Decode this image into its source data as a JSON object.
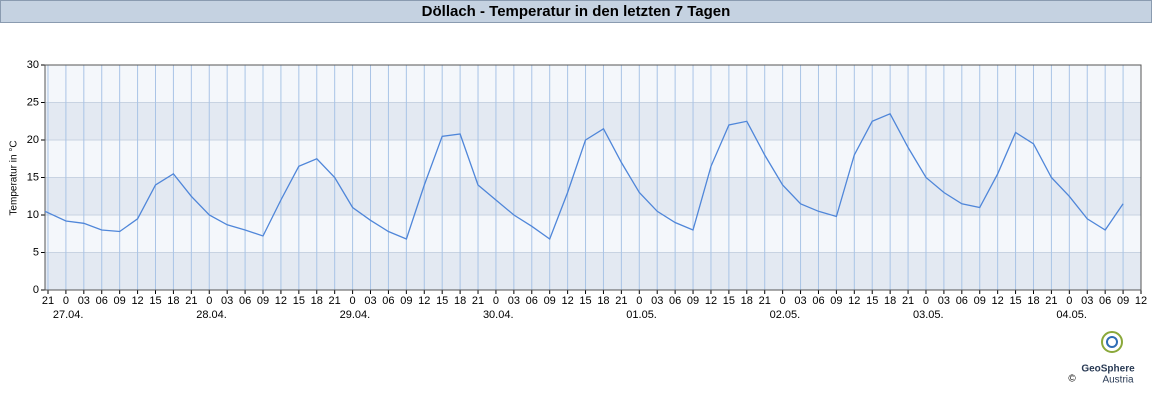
{
  "chart_data": {
    "type": "line",
    "title": "Döllach - Temperatur in den letzten 7 Tagen",
    "y_label": "Temperatur in °C",
    "x": [
      -3.5,
      0,
      3,
      6,
      9,
      12,
      15,
      18,
      21,
      24,
      27,
      30,
      33,
      36,
      39,
      42,
      45,
      48,
      51,
      54,
      57,
      60,
      63,
      66,
      69,
      72,
      75,
      78,
      81,
      84,
      87,
      90,
      93,
      96,
      99,
      102,
      105,
      108,
      111,
      114,
      117,
      120,
      123,
      126,
      129,
      132,
      135,
      138,
      141,
      144,
      147,
      150,
      153,
      156,
      159,
      162,
      165,
      168,
      171,
      174,
      177
    ],
    "series": [
      {
        "name": "Temperatur",
        "color": "#4f86d9",
        "values": [
          10.5,
          9.2,
          8.9,
          8.0,
          7.8,
          9.5,
          14.0,
          15.5,
          12.5,
          10.0,
          8.7,
          8.0,
          7.2,
          12.0,
          16.5,
          17.5,
          15.0,
          11.0,
          9.3,
          7.8,
          6.8,
          14.0,
          20.5,
          20.8,
          14.0,
          12.0,
          10.0,
          8.5,
          6.8,
          13.0,
          20.0,
          21.5,
          17.0,
          13.0,
          10.5,
          9.0,
          8.0,
          16.5,
          22.0,
          22.5,
          18.0,
          14.0,
          11.5,
          10.5,
          9.8,
          18.0,
          22.5,
          23.5,
          19.0,
          15.0,
          13.0,
          11.5,
          11.0,
          15.5,
          21.0,
          19.5,
          15.0,
          12.5,
          9.5,
          8.0,
          11.5
        ]
      }
    ],
    "xlim": [
      -3.5,
      180
    ],
    "xticks": [
      {
        "value": -3,
        "label": "21"
      },
      {
        "value": 0,
        "label": "0"
      },
      {
        "value": 3,
        "label": "03"
      },
      {
        "value": 6,
        "label": "06"
      },
      {
        "value": 9,
        "label": "09"
      },
      {
        "value": 12,
        "label": "12"
      },
      {
        "value": 15,
        "label": "15"
      },
      {
        "value": 18,
        "label": "18"
      },
      {
        "value": 21,
        "label": "21"
      },
      {
        "value": 24,
        "label": "0"
      },
      {
        "value": 27,
        "label": "03"
      },
      {
        "value": 30,
        "label": "06"
      },
      {
        "value": 33,
        "label": "09"
      },
      {
        "value": 36,
        "label": "12"
      },
      {
        "value": 39,
        "label": "15"
      },
      {
        "value": 42,
        "label": "18"
      },
      {
        "value": 45,
        "label": "21"
      },
      {
        "value": 48,
        "label": "0"
      },
      {
        "value": 51,
        "label": "03"
      },
      {
        "value": 54,
        "label": "06"
      },
      {
        "value": 57,
        "label": "09"
      },
      {
        "value": 60,
        "label": "12"
      },
      {
        "value": 63,
        "label": "15"
      },
      {
        "value": 66,
        "label": "18"
      },
      {
        "value": 69,
        "label": "21"
      },
      {
        "value": 72,
        "label": "0"
      },
      {
        "value": 75,
        "label": "03"
      },
      {
        "value": 78,
        "label": "06"
      },
      {
        "value": 81,
        "label": "09"
      },
      {
        "value": 84,
        "label": "12"
      },
      {
        "value": 87,
        "label": "15"
      },
      {
        "value": 90,
        "label": "18"
      },
      {
        "value": 93,
        "label": "21"
      },
      {
        "value": 96,
        "label": "0"
      },
      {
        "value": 99,
        "label": "03"
      },
      {
        "value": 102,
        "label": "06"
      },
      {
        "value": 105,
        "label": "09"
      },
      {
        "value": 108,
        "label": "12"
      },
      {
        "value": 111,
        "label": "15"
      },
      {
        "value": 114,
        "label": "18"
      },
      {
        "value": 117,
        "label": "21"
      },
      {
        "value": 120,
        "label": "0"
      },
      {
        "value": 123,
        "label": "03"
      },
      {
        "value": 126,
        "label": "06"
      },
      {
        "value": 129,
        "label": "09"
      },
      {
        "value": 132,
        "label": "12"
      },
      {
        "value": 135,
        "label": "15"
      },
      {
        "value": 138,
        "label": "18"
      },
      {
        "value": 141,
        "label": "21"
      },
      {
        "value": 144,
        "label": "0"
      },
      {
        "value": 147,
        "label": "03"
      },
      {
        "value": 150,
        "label": "06"
      },
      {
        "value": 153,
        "label": "09"
      },
      {
        "value": 156,
        "label": "12"
      },
      {
        "value": 159,
        "label": "15"
      },
      {
        "value": 162,
        "label": "18"
      },
      {
        "value": 165,
        "label": "21"
      },
      {
        "value": 168,
        "label": "0"
      },
      {
        "value": 171,
        "label": "03"
      },
      {
        "value": 174,
        "label": "06"
      },
      {
        "value": 177,
        "label": "09"
      },
      {
        "value": 180,
        "label": "12"
      }
    ],
    "date_ticks": [
      {
        "value": 0,
        "label": "27.04."
      },
      {
        "value": 24,
        "label": "28.04."
      },
      {
        "value": 48,
        "label": "29.04."
      },
      {
        "value": 72,
        "label": "30.04."
      },
      {
        "value": 96,
        "label": "01.05."
      },
      {
        "value": 120,
        "label": "02.05."
      },
      {
        "value": 144,
        "label": "03.05."
      },
      {
        "value": 168,
        "label": "04.05."
      }
    ],
    "ylim": [
      0,
      30
    ],
    "yticks": [
      0,
      5,
      10,
      15,
      20,
      25,
      30
    ],
    "grid": true
  },
  "logo": {
    "name": "GeoSphere",
    "sub": "Austria",
    "copyright": "©"
  }
}
